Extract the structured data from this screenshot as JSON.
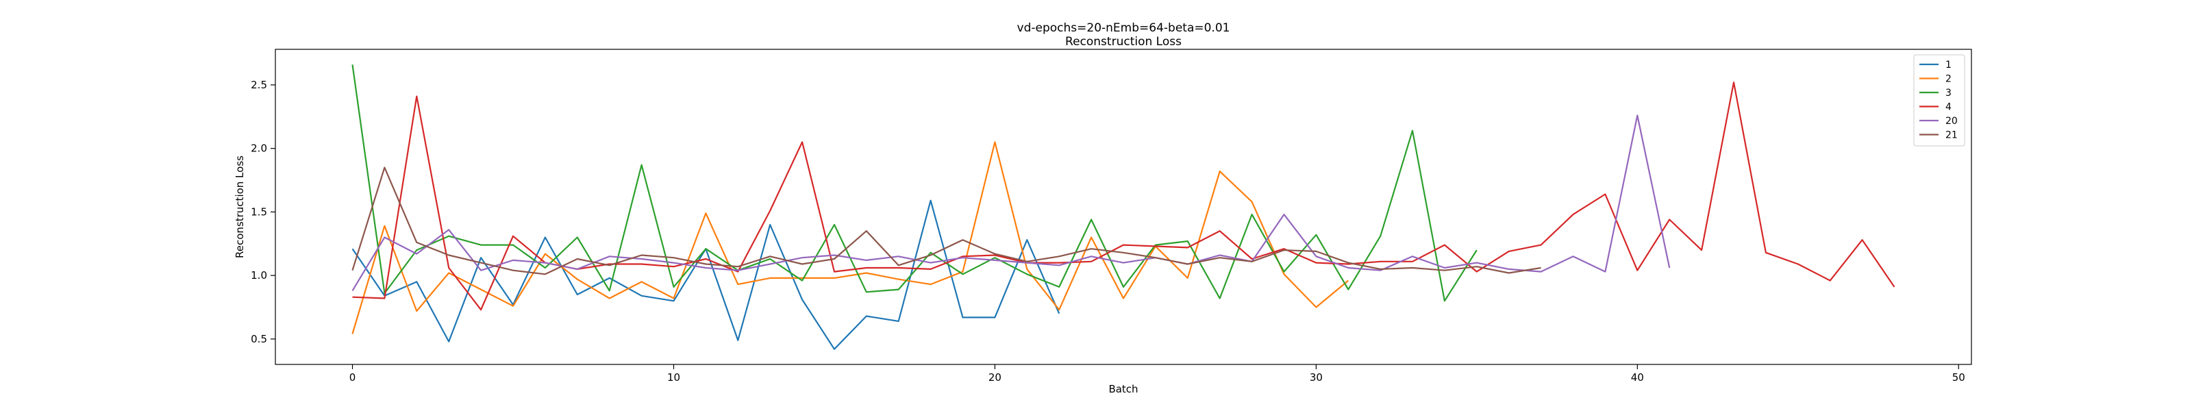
{
  "chart_data": {
    "type": "line",
    "title": "vd-epochs=20-nEmb=64-beta=0.01",
    "subtitle": "Reconstruction Loss",
    "xlabel": "Batch",
    "ylabel": "Reconstruction Loss",
    "xlim": [
      -2.4,
      50.4
    ],
    "ylim": [
      0.3,
      2.78
    ],
    "xticks": [
      0,
      10,
      20,
      30,
      40,
      50
    ],
    "yticks": [
      0.5,
      1.0,
      1.5,
      2.0,
      2.5
    ],
    "xtick_labels": [
      "0",
      "10",
      "20",
      "30",
      "40",
      "50"
    ],
    "ytick_labels": [
      "0.5",
      "1.0",
      "1.5",
      "2.0",
      "2.5"
    ],
    "grid": false,
    "legend_position": "top-right",
    "series": [
      {
        "name": "1",
        "color": "#1f77b4",
        "x": [
          0,
          1,
          2,
          3,
          4,
          5,
          6,
          7,
          8,
          9,
          10,
          11,
          12,
          13,
          14,
          15,
          16,
          17,
          18,
          19,
          20,
          21,
          22
        ],
        "y": [
          1.21,
          0.84,
          0.95,
          0.48,
          1.14,
          0.77,
          1.3,
          0.85,
          0.98,
          0.84,
          0.8,
          1.21,
          0.49,
          1.4,
          0.81,
          0.42,
          0.68,
          0.64,
          1.59,
          0.67,
          0.67,
          1.28,
          0.7
        ]
      },
      {
        "name": "2",
        "color": "#ff7f0e",
        "x": [
          0,
          1,
          2,
          3,
          4,
          5,
          6,
          7,
          8,
          9,
          10,
          11,
          12,
          13,
          14,
          15,
          16,
          17,
          18,
          19,
          20,
          21,
          22,
          23,
          24,
          25,
          26,
          27,
          28,
          29,
          30,
          31
        ],
        "y": [
          0.54,
          1.39,
          0.72,
          1.02,
          0.89,
          0.76,
          1.17,
          0.97,
          0.82,
          0.95,
          0.82,
          1.49,
          0.93,
          0.98,
          0.98,
          0.98,
          1.02,
          0.97,
          0.93,
          1.03,
          2.05,
          1.05,
          0.73,
          1.3,
          0.82,
          1.23,
          0.98,
          1.82,
          1.58,
          1.01,
          0.75,
          0.96
        ]
      },
      {
        "name": "3",
        "color": "#2ca02c",
        "x": [
          0,
          1,
          2,
          3,
          4,
          5,
          6,
          7,
          8,
          9,
          10,
          11,
          12,
          13,
          14,
          15,
          16,
          17,
          18,
          19,
          20,
          21,
          22,
          23,
          24,
          25,
          26,
          27,
          28,
          29,
          30,
          31,
          32,
          33,
          34,
          35
        ],
        "y": [
          2.66,
          0.86,
          1.2,
          1.31,
          1.24,
          1.24,
          1.06,
          1.3,
          0.88,
          1.87,
          0.91,
          1.21,
          1.04,
          1.13,
          0.96,
          1.4,
          0.87,
          0.89,
          1.18,
          1.01,
          1.14,
          1.01,
          0.91,
          1.44,
          0.91,
          1.24,
          1.27,
          0.82,
          1.48,
          1.03,
          1.32,
          0.89,
          1.31,
          2.14,
          0.8,
          1.2
        ]
      },
      {
        "name": "4",
        "color": "#d62728",
        "x": [
          0,
          1,
          2,
          3,
          4,
          5,
          6,
          7,
          8,
          9,
          10,
          11,
          12,
          13,
          14,
          15,
          16,
          17,
          18,
          19,
          20,
          21,
          22,
          23,
          24,
          25,
          26,
          27,
          28,
          29,
          30,
          31,
          32,
          33,
          34,
          35,
          36,
          37,
          38,
          39,
          40,
          41,
          42,
          43,
          44,
          45,
          46,
          47,
          48
        ],
        "y": [
          0.83,
          0.82,
          2.41,
          1.06,
          0.73,
          1.31,
          1.1,
          1.05,
          1.09,
          1.09,
          1.07,
          1.13,
          1.03,
          1.51,
          2.05,
          1.03,
          1.06,
          1.06,
          1.05,
          1.15,
          1.16,
          1.1,
          1.1,
          1.11,
          1.24,
          1.23,
          1.22,
          1.35,
          1.13,
          1.21,
          1.1,
          1.09,
          1.11,
          1.11,
          1.24,
          1.03,
          1.19,
          1.24,
          1.48,
          1.64,
          1.04,
          1.44,
          1.2,
          2.52,
          1.18,
          1.09,
          0.96,
          1.28,
          0.91
        ]
      },
      {
        "name": "20",
        "color": "#9467bd",
        "x": [
          0,
          1,
          2,
          3,
          4,
          5,
          6,
          7,
          8,
          9,
          10,
          11,
          12,
          13,
          14,
          15,
          16,
          17,
          18,
          19,
          20,
          21,
          22,
          23,
          24,
          25,
          26,
          27,
          28,
          29,
          30,
          31,
          32,
          33,
          34,
          35,
          36,
          37,
          38,
          39,
          40,
          41
        ],
        "y": [
          0.88,
          1.3,
          1.17,
          1.36,
          1.04,
          1.12,
          1.1,
          1.05,
          1.15,
          1.13,
          1.1,
          1.06,
          1.04,
          1.09,
          1.14,
          1.16,
          1.12,
          1.15,
          1.1,
          1.14,
          1.12,
          1.1,
          1.08,
          1.15,
          1.1,
          1.14,
          1.09,
          1.16,
          1.11,
          1.48,
          1.15,
          1.06,
          1.04,
          1.15,
          1.06,
          1.1,
          1.05,
          1.03,
          1.15,
          1.03,
          2.26,
          1.06
        ]
      },
      {
        "name": "21",
        "color": "#8c564b",
        "x": [
          0,
          1,
          2,
          3,
          4,
          5,
          6,
          7,
          8,
          9,
          10,
          11,
          12,
          13,
          14,
          15,
          16,
          17,
          18,
          19,
          20,
          21,
          22,
          23,
          24,
          25,
          26,
          27,
          28,
          29,
          30,
          31,
          32,
          33,
          34,
          35,
          36,
          37
        ],
        "y": [
          1.04,
          1.85,
          1.26,
          1.16,
          1.1,
          1.04,
          1.01,
          1.13,
          1.08,
          1.16,
          1.14,
          1.09,
          1.07,
          1.15,
          1.09,
          1.13,
          1.35,
          1.08,
          1.16,
          1.28,
          1.17,
          1.11,
          1.15,
          1.21,
          1.18,
          1.14,
          1.09,
          1.14,
          1.11,
          1.2,
          1.19,
          1.1,
          1.05,
          1.06,
          1.04,
          1.07,
          1.02,
          1.06
        ]
      }
    ]
  }
}
